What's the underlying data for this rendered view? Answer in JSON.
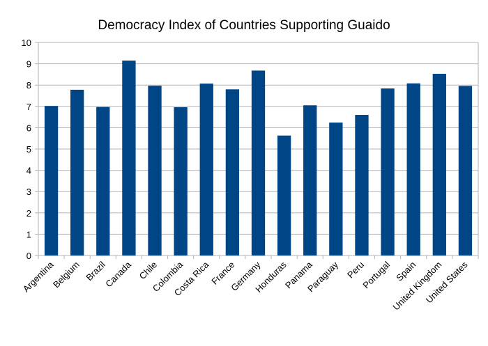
{
  "chart_data": {
    "type": "bar",
    "title": "Democracy Index of Countries Supporting Guaido",
    "xlabel": "",
    "ylabel": "",
    "ylim": [
      0,
      10
    ],
    "yticks": [
      "0",
      "1",
      "2",
      "3",
      "4",
      "5",
      "6",
      "7",
      "8",
      "9",
      "10"
    ],
    "grid": true,
    "legend": "none",
    "bar_color": "#004586",
    "categories": [
      "Argentina",
      "Belgium",
      "Brazil",
      "Canada",
      "Chile",
      "Colombia",
      "Costa Rica",
      "France",
      "Germany",
      "Honduras",
      "Panama",
      "Paraguay",
      "Peru",
      "Portugal",
      "Spain",
      "United Kingdom",
      "United States"
    ],
    "values": [
      7.02,
      7.78,
      6.97,
      9.15,
      7.97,
      6.96,
      8.07,
      7.8,
      8.68,
      5.63,
      7.05,
      6.24,
      6.6,
      7.84,
      8.08,
      8.53,
      7.96
    ]
  }
}
